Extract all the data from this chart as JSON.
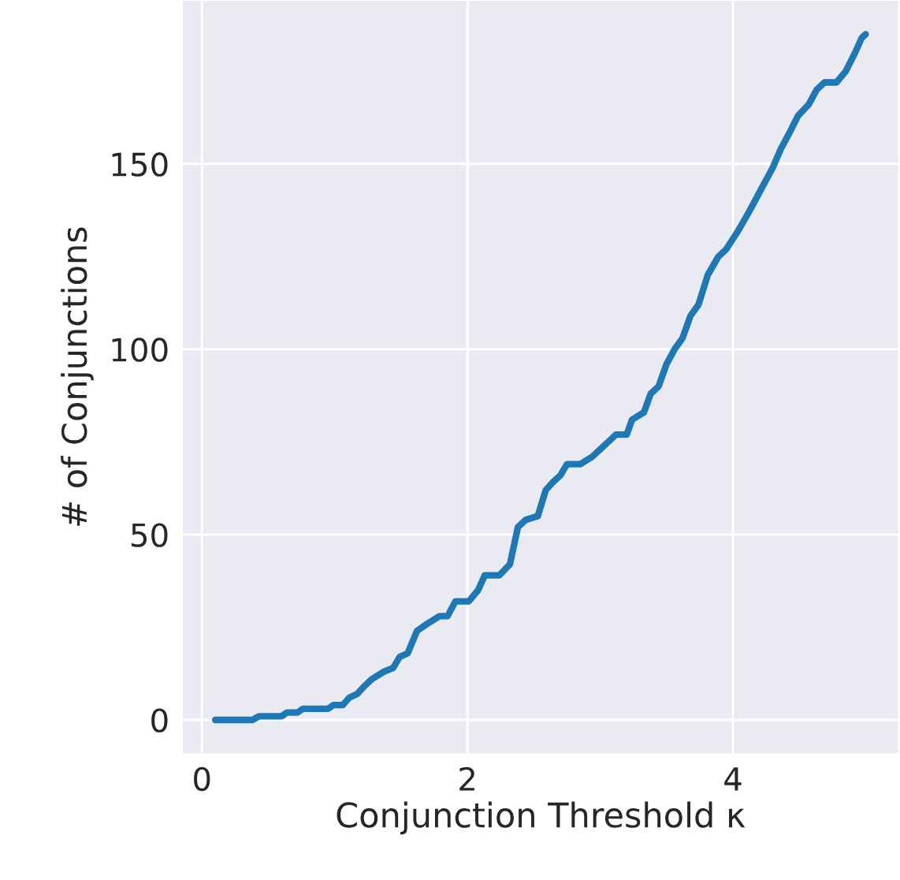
{
  "chart_data": {
    "type": "line",
    "xlabel": "Conjunction Threshold κ",
    "ylabel": "# of Conjunctions",
    "x": [
      0.1,
      0.38,
      0.43,
      0.6,
      0.64,
      0.72,
      0.76,
      0.95,
      0.99,
      1.06,
      1.11,
      1.17,
      1.22,
      1.28,
      1.37,
      1.44,
      1.49,
      1.55,
      1.62,
      1.7,
      1.79,
      1.85,
      1.91,
      2.01,
      2.08,
      2.13,
      2.24,
      2.32,
      2.38,
      2.44,
      2.53,
      2.59,
      2.64,
      2.7,
      2.75,
      2.85,
      2.94,
      3.0,
      3.06,
      3.12,
      3.2,
      3.24,
      3.33,
      3.38,
      3.44,
      3.5,
      3.56,
      3.62,
      3.68,
      3.74,
      3.81,
      3.89,
      3.95,
      4.04,
      4.12,
      4.21,
      4.3,
      4.36,
      4.42,
      4.49,
      4.57,
      4.63,
      4.69,
      4.78,
      4.85,
      4.92,
      4.97,
      5.0
    ],
    "series": [
      {
        "color": "#1f77b4",
        "values": [
          0,
          0,
          1,
          1,
          2,
          2,
          3,
          3,
          4,
          4,
          6,
          7,
          9,
          11,
          13,
          14,
          17,
          18,
          24,
          26,
          28,
          28,
          32,
          32,
          35,
          39,
          39,
          42,
          52,
          54,
          55,
          62,
          64,
          66,
          69,
          69,
          71,
          73,
          75,
          77,
          77,
          81,
          83,
          88,
          90,
          96,
          100,
          103,
          109,
          112,
          120,
          125,
          127,
          132,
          137,
          143,
          149,
          154,
          158,
          163,
          166,
          170,
          172,
          172,
          175,
          180,
          184,
          185
        ]
      }
    ],
    "xlim": [
      -0.145,
      5.245
    ],
    "ylim": [
      -9,
      194
    ],
    "xticks": [
      0,
      2,
      4
    ],
    "yticks": [
      0,
      50,
      100,
      150
    ],
    "grid": true,
    "marker": "none",
    "line_style": "solid"
  }
}
